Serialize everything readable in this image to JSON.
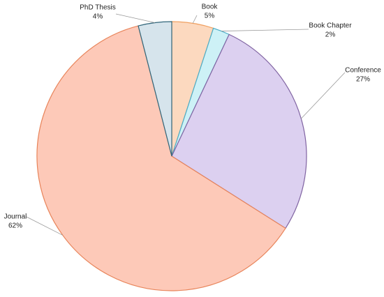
{
  "chart_data": {
    "type": "pie",
    "categories": [
      "Book",
      "Book Chapter",
      "Conference",
      "Journal",
      "PhD Thesis"
    ],
    "values": [
      5,
      2,
      27,
      62,
      4
    ],
    "value_labels": [
      "5%",
      "2%",
      "27%",
      "62%",
      "4%"
    ],
    "colors": [
      "#fcd9bf",
      "#cdf1f6",
      "#dcd0f0",
      "#fdc9b8",
      "#d6e4ec"
    ],
    "border_colors": [
      "#f0a060",
      "#4bacc6",
      "#8064a2",
      "#e8845a",
      "#31667a"
    ]
  }
}
